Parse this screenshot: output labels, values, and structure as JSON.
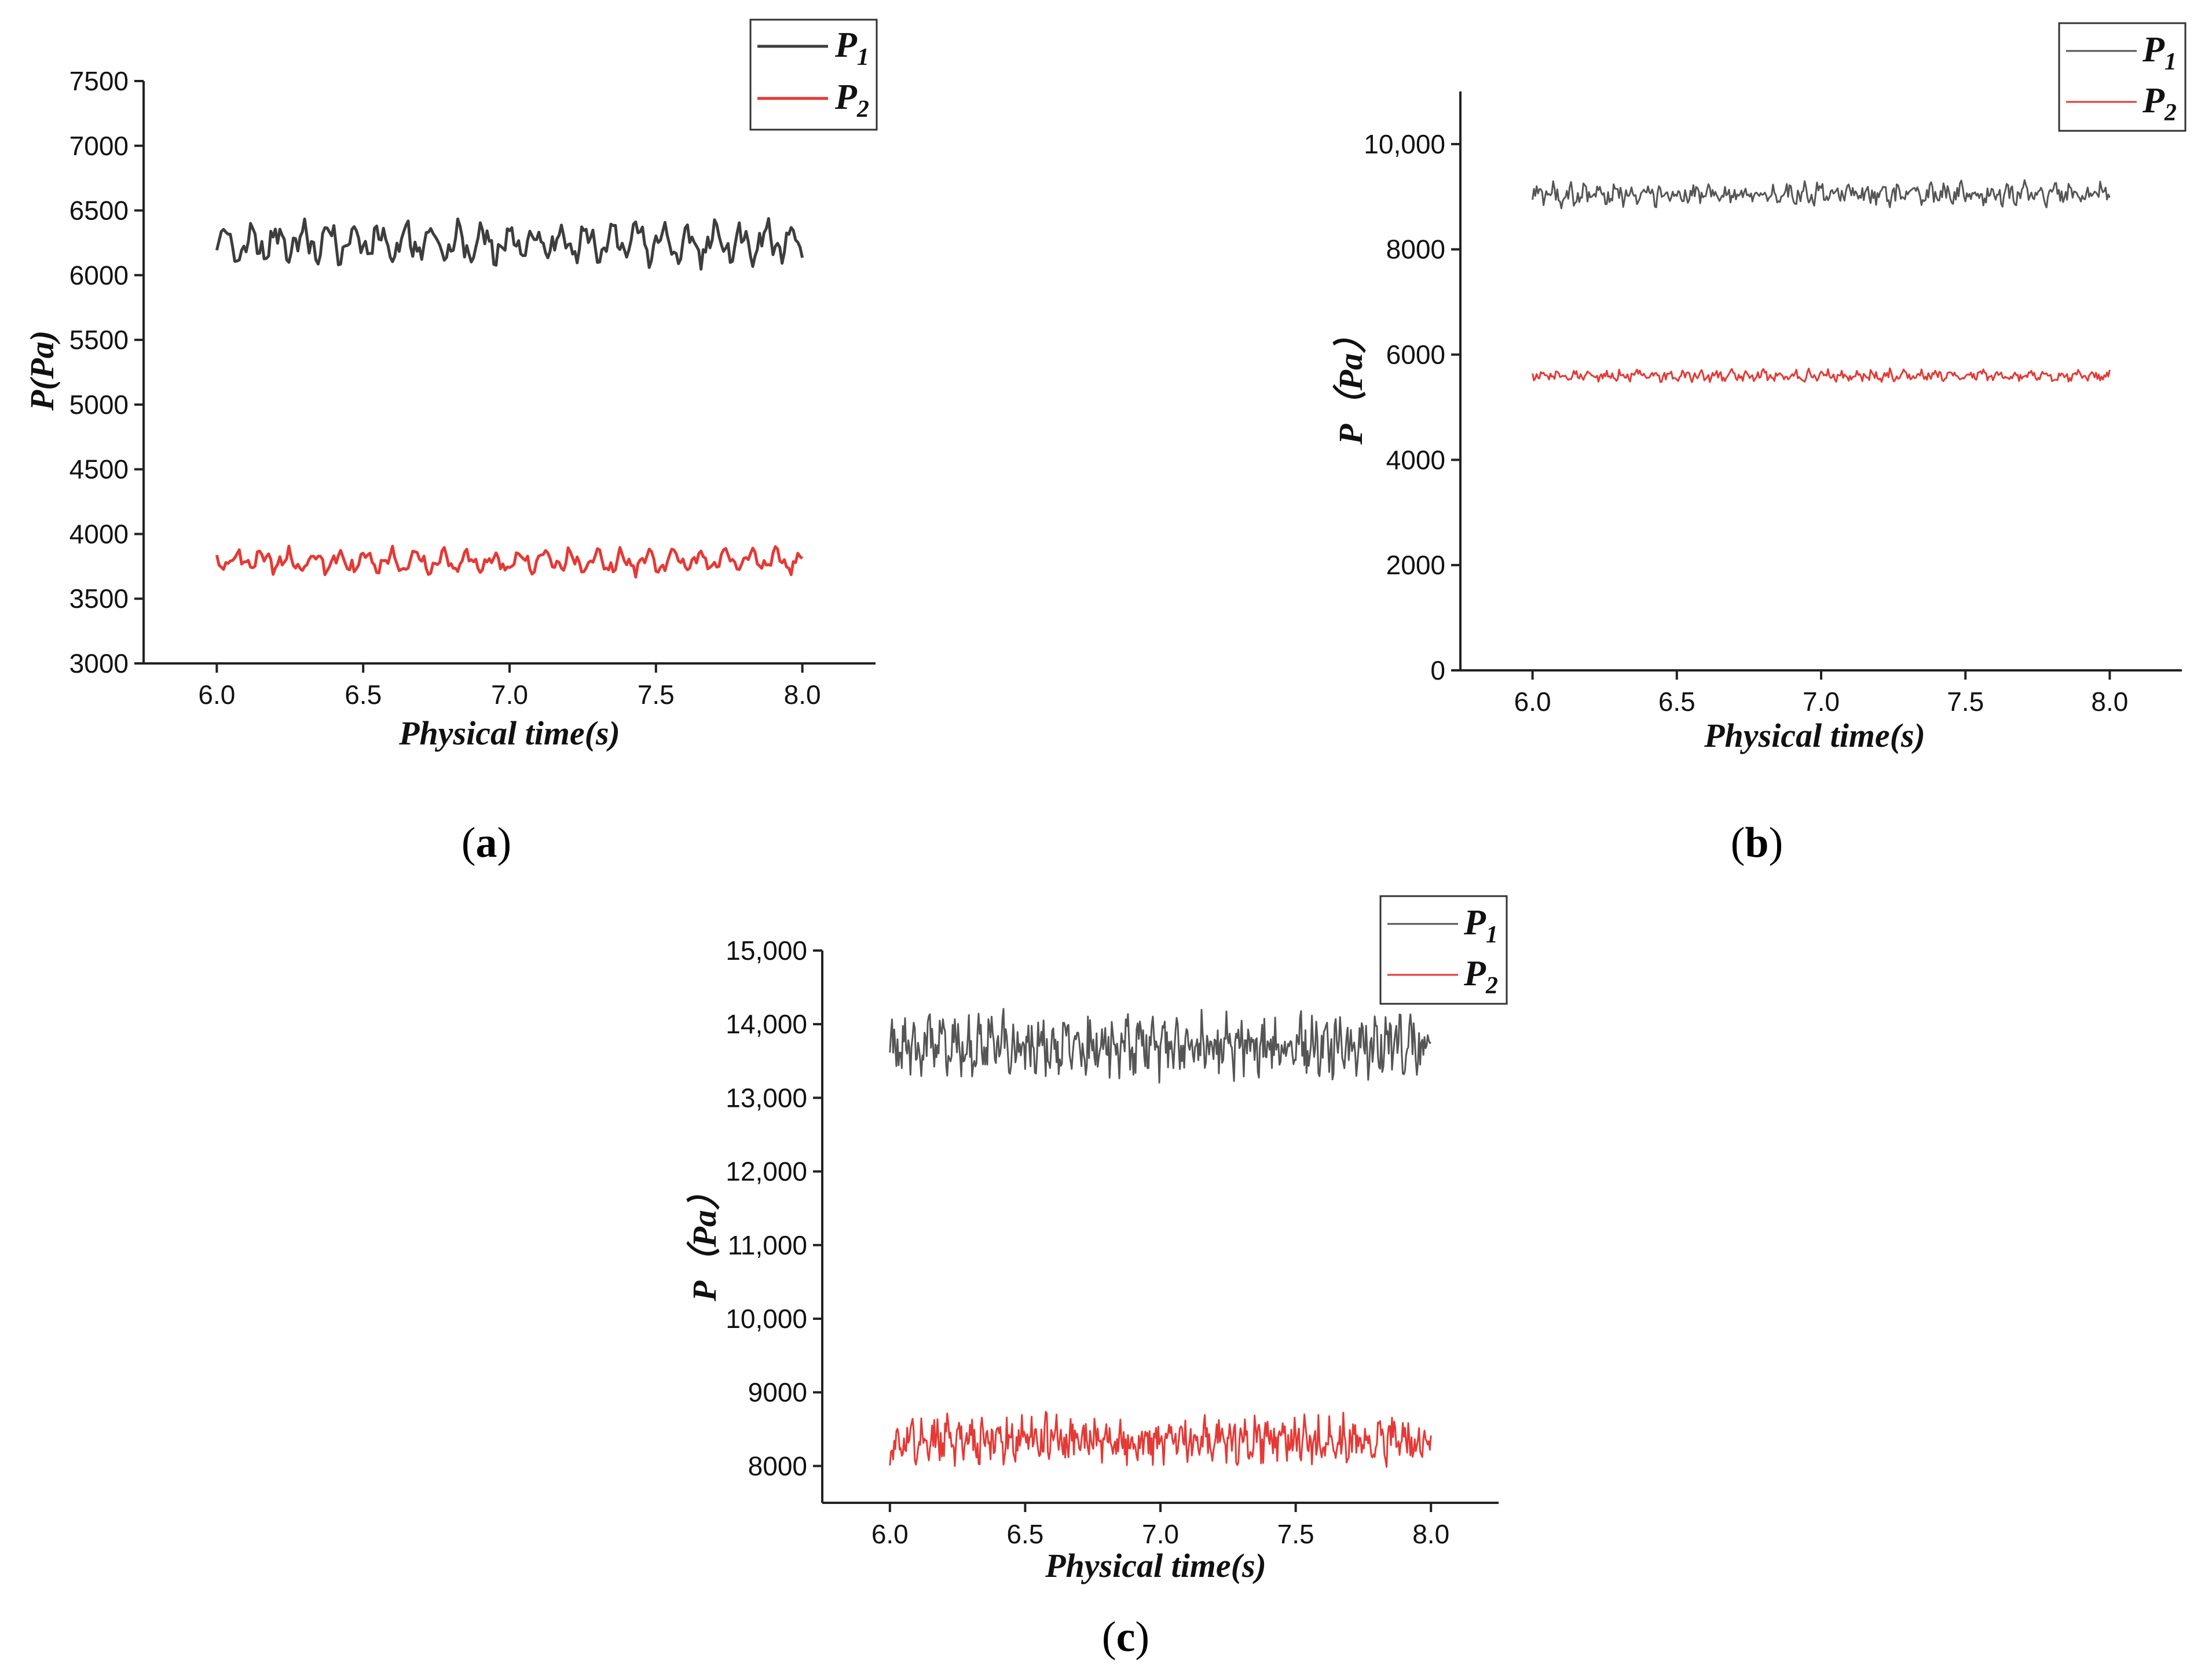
{
  "panels": [
    {
      "caption_open": "(",
      "caption_letter": "a",
      "caption_close": ")"
    },
    {
      "caption_open": "(",
      "caption_letter": "b",
      "caption_close": ")"
    },
    {
      "caption_open": "(",
      "caption_letter": "c",
      "caption_close": ")"
    }
  ],
  "chart_data": [
    {
      "type": "line",
      "xlabel": "Physical time(s)",
      "ylabel": "P(Pa)",
      "xlim": [
        5.75,
        8.25
      ],
      "ylim": [
        3000,
        7500
      ],
      "xticks": [
        "6.0",
        "6.5",
        "7.0",
        "7.5",
        "8.0"
      ],
      "yticks": [
        "3000",
        "3500",
        "4000",
        "4500",
        "5000",
        "5500",
        "6000",
        "6500",
        "7000",
        "7500"
      ],
      "ytick_values": [
        3000,
        3500,
        4000,
        4500,
        5000,
        5500,
        6000,
        6500,
        7000,
        7500
      ],
      "xtick_values": [
        6.0,
        6.5,
        7.0,
        7.5,
        8.0
      ],
      "legend_position": "top-right",
      "series": [
        {
          "name": "P1",
          "name_base": "P",
          "name_sub": "1",
          "color": "#3d3d3d",
          "mean": 6250,
          "amplitude": 190,
          "noise": 0.35,
          "x_start": 6.0,
          "x_end": 8.0,
          "samples": 260
        },
        {
          "name": "P2",
          "name_base": "P",
          "name_sub": "2",
          "color": "#e53935",
          "mean": 3790,
          "amplitude": 110,
          "noise": 0.35,
          "x_start": 6.0,
          "x_end": 8.0,
          "samples": 260
        }
      ]
    },
    {
      "type": "line",
      "xlabel": "Physical time(s)",
      "ylabel": "P（Pa）",
      "xlim": [
        5.75,
        8.25
      ],
      "ylim": [
        0,
        11000
      ],
      "xticks": [
        "6.0",
        "6.5",
        "7.0",
        "7.5",
        "8.0"
      ],
      "yticks": [
        "0",
        "2000",
        "4000",
        "6000",
        "8000",
        "10,000"
      ],
      "ytick_values": [
        0,
        2000,
        4000,
        6000,
        8000,
        10000
      ],
      "xtick_values": [
        6.0,
        6.5,
        7.0,
        7.5,
        8.0
      ],
      "legend_position": "top-right",
      "series": [
        {
          "name": "P1",
          "name_base": "P",
          "name_sub": "1",
          "color": "#555555",
          "mean": 9050,
          "amplitude": 230,
          "noise": 0.8,
          "x_start": 6.0,
          "x_end": 8.0,
          "samples": 420
        },
        {
          "name": "P2",
          "name_base": "P",
          "name_sub": "2",
          "color": "#e53935",
          "mean": 5600,
          "amplitude": 120,
          "noise": 0.8,
          "x_start": 6.0,
          "x_end": 8.0,
          "samples": 420
        }
      ]
    },
    {
      "type": "line",
      "xlabel": "Physical time(s)",
      "ylabel": "P（Pa）",
      "xlim": [
        5.75,
        8.25
      ],
      "ylim": [
        7500,
        15000
      ],
      "xticks": [
        "6.0",
        "6.5",
        "7.0",
        "7.5",
        "8.0"
      ],
      "yticks": [
        "8000",
        "9000",
        "10,000",
        "11,000",
        "12,000",
        "13,000",
        "14,000",
        "15,000"
      ],
      "ytick_values": [
        8000,
        9000,
        10000,
        11000,
        12000,
        13000,
        14000,
        15000
      ],
      "xtick_values": [
        6.0,
        6.5,
        7.0,
        7.5,
        8.0
      ],
      "legend_position": "top-right",
      "series": [
        {
          "name": "P1",
          "name_base": "P",
          "name_sub": "1",
          "color": "#555555",
          "mean": 13700,
          "amplitude": 420,
          "noise": 1.0,
          "x_start": 6.0,
          "x_end": 8.0,
          "samples": 500
        },
        {
          "name": "P2",
          "name_base": "P",
          "name_sub": "2",
          "color": "#e53935",
          "mean": 8350,
          "amplitude": 320,
          "noise": 1.0,
          "x_start": 6.0,
          "x_end": 8.0,
          "samples": 500
        }
      ]
    }
  ]
}
